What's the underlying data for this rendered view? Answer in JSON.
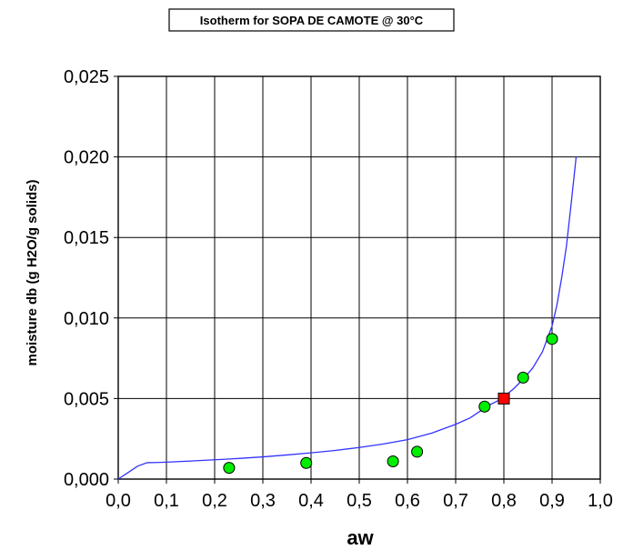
{
  "chart_data": {
    "type": "scatter",
    "title": "Isotherm for SOPA DE CAMOTE  @ 30°C",
    "xlabel": "aw",
    "ylabel": "moisture db  (g H2O/g solids)",
    "xlim": [
      0.0,
      1.0
    ],
    "ylim": [
      0.0,
      0.025
    ],
    "x_ticks": [
      "0,0",
      "0,1",
      "0,2",
      "0,3",
      "0,4",
      "0,5",
      "0,6",
      "0,7",
      "0,8",
      "0,9",
      "1,0"
    ],
    "y_ticks": [
      "0,000",
      "0,005",
      "0,010",
      "0,015",
      "0,020",
      "0,025"
    ],
    "grid": true,
    "series": [
      {
        "kind": "points",
        "marker": "circle",
        "color": "#00ee00",
        "x": [
          0.23,
          0.39,
          0.57,
          0.62,
          0.76,
          0.84,
          0.9
        ],
        "y": [
          0.0007,
          0.001,
          0.0011,
          0.0017,
          0.0045,
          0.0063,
          0.0087
        ]
      },
      {
        "kind": "points",
        "marker": "square",
        "color": "#ff0000",
        "x": [
          0.8
        ],
        "y": [
          0.005
        ]
      },
      {
        "kind": "line",
        "color": "#3333ff",
        "x": [
          0.0,
          0.02,
          0.04,
          0.06,
          0.08,
          0.1,
          0.15,
          0.2,
          0.25,
          0.3,
          0.35,
          0.4,
          0.45,
          0.5,
          0.55,
          0.6,
          0.65,
          0.7,
          0.73,
          0.75,
          0.77,
          0.79,
          0.8,
          0.82,
          0.84,
          0.86,
          0.88,
          0.9,
          0.91,
          0.92,
          0.93,
          0.94,
          0.95
        ],
        "y": [
          0.0,
          0.0004,
          0.0008,
          0.00102,
          0.00103,
          0.00105,
          0.00112,
          0.0012,
          0.00128,
          0.00138,
          0.0015,
          0.00163,
          0.00178,
          0.00196,
          0.00218,
          0.00245,
          0.00285,
          0.0034,
          0.0038,
          0.0042,
          0.0046,
          0.0049,
          0.0051,
          0.0056,
          0.0062,
          0.0069,
          0.0079,
          0.0095,
          0.0108,
          0.0125,
          0.0145,
          0.0172,
          0.02
        ]
      }
    ]
  }
}
